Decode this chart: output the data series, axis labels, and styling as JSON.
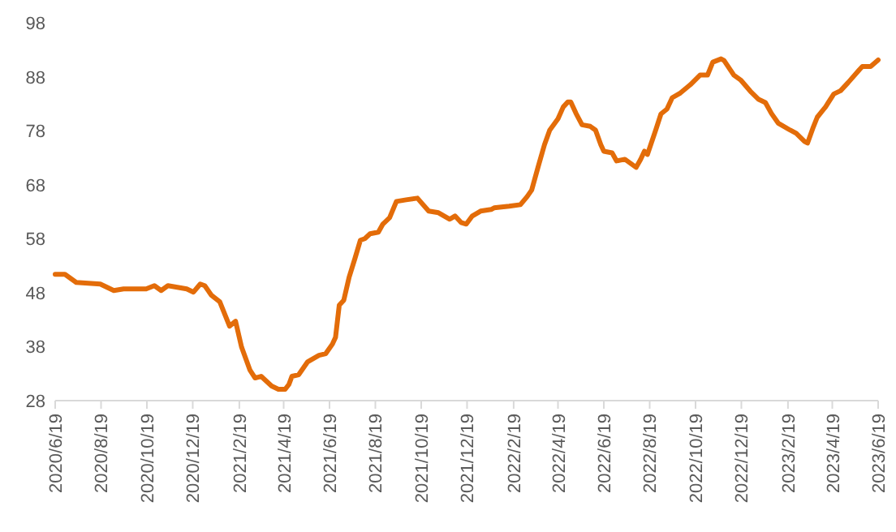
{
  "chart_data": {
    "type": "line",
    "x": [
      "2020-06-19",
      "2020-07-02",
      "2020-07-17",
      "2020-08-18",
      "2020-09-05",
      "2020-09-18",
      "2020-10-18",
      "2020-10-29",
      "2020-11-07",
      "2020-11-16",
      "2020-12-11",
      "2020-12-20",
      "2020-12-29",
      "2021-01-04",
      "2021-01-13",
      "2021-01-24",
      "2021-02-06",
      "2021-02-14",
      "2021-02-22",
      "2021-03-05",
      "2021-03-12",
      "2021-03-20",
      "2021-04-03",
      "2021-04-12",
      "2021-04-21",
      "2021-04-26",
      "2021-04-30",
      "2021-05-09",
      "2021-05-21",
      "2021-06-05",
      "2021-06-14",
      "2021-06-23",
      "2021-06-27",
      "2021-07-02",
      "2021-07-08",
      "2021-07-15",
      "2021-07-23",
      "2021-07-30",
      "2021-08-05",
      "2021-08-12",
      "2021-08-23",
      "2021-08-29",
      "2021-09-07",
      "2021-09-16",
      "2021-09-29",
      "2021-10-14",
      "2021-10-29",
      "2021-11-11",
      "2021-11-26",
      "2021-12-03",
      "2021-12-11",
      "2021-12-18",
      "2021-12-26",
      "2022-01-06",
      "2022-01-20",
      "2022-01-24",
      "2022-02-13",
      "2022-02-28",
      "2022-03-09",
      "2022-03-15",
      "2022-03-24",
      "2022-04-01",
      "2022-04-08",
      "2022-04-19",
      "2022-04-26",
      "2022-05-02",
      "2022-05-06",
      "2022-05-13",
      "2022-05-21",
      "2022-06-01",
      "2022-06-08",
      "2022-06-15",
      "2022-06-19",
      "2022-06-30",
      "2022-07-06",
      "2022-07-17",
      "2022-08-01",
      "2022-08-07",
      "2022-08-12",
      "2022-08-16",
      "2022-08-27",
      "2022-09-03",
      "2022-09-11",
      "2022-09-18",
      "2022-09-29",
      "2022-10-12",
      "2022-10-25",
      "2022-11-04",
      "2022-11-11",
      "2022-11-22",
      "2022-11-26",
      "2022-12-09",
      "2022-12-18",
      "2022-12-31",
      "2023-01-11",
      "2023-01-20",
      "2023-01-28",
      "2023-02-06",
      "2023-02-22",
      "2023-03-02",
      "2023-03-13",
      "2023-03-17",
      "2023-03-24",
      "2023-03-30",
      "2023-04-10",
      "2023-04-21",
      "2023-04-30",
      "2023-05-10",
      "2023-05-25",
      "2023-05-29",
      "2023-06-09",
      "2023-06-19"
    ],
    "series": [
      {
        "color": "#e36c09",
        "values": [
          51.4,
          51.4,
          49.9,
          49.6,
          48.4,
          48.7,
          48.7,
          49.3,
          48.4,
          49.3,
          48.7,
          48.1,
          49.6,
          49.3,
          47.5,
          46.3,
          41.8,
          42.7,
          37.9,
          33.7,
          32.2,
          32.5,
          30.7,
          30.1,
          30.1,
          31.0,
          32.5,
          32.8,
          35.2,
          36.4,
          36.7,
          38.5,
          39.7,
          45.7,
          46.6,
          50.8,
          54.4,
          57.7,
          58.0,
          58.9,
          59.2,
          60.7,
          61.9,
          64.9,
          65.2,
          65.5,
          63.1,
          62.8,
          61.6,
          62.2,
          61.0,
          60.7,
          62.2,
          63.1,
          63.4,
          63.7,
          64.0,
          64.3,
          65.8,
          67.0,
          71.5,
          75.4,
          78.1,
          80.2,
          82.4,
          83.3,
          83.3,
          81.2,
          79.1,
          78.8,
          78.1,
          75.4,
          74.2,
          73.9,
          72.4,
          72.7,
          71.2,
          72.7,
          74.2,
          73.6,
          78.1,
          81.1,
          82.0,
          84.1,
          85.0,
          86.5,
          88.3,
          88.3,
          90.7,
          91.3,
          91.0,
          88.3,
          87.4,
          85.3,
          83.8,
          83.2,
          81.2,
          79.4,
          78.1,
          77.5,
          76.0,
          75.7,
          78.4,
          80.5,
          82.4,
          84.8,
          85.4,
          86.9,
          89.3,
          89.9,
          89.9,
          91.1
        ]
      }
    ],
    "xlim": [
      "2020-06-19",
      "2023-06-19"
    ],
    "xticks": [
      {
        "value": "2020-06-19",
        "label": "2020/6/19"
      },
      {
        "value": "2020-08-19",
        "label": "2020/8/19"
      },
      {
        "value": "2020-10-19",
        "label": "2020/10/19"
      },
      {
        "value": "2020-12-19",
        "label": "2020/12/19"
      },
      {
        "value": "2021-02-19",
        "label": "2021/2/19"
      },
      {
        "value": "2021-04-19",
        "label": "2021/4/19"
      },
      {
        "value": "2021-06-19",
        "label": "2021/6/19"
      },
      {
        "value": "2021-08-19",
        "label": "2021/8/19"
      },
      {
        "value": "2021-10-19",
        "label": "2021/10/19"
      },
      {
        "value": "2021-12-19",
        "label": "2021/12/19"
      },
      {
        "value": "2022-02-19",
        "label": "2022/2/19"
      },
      {
        "value": "2022-04-19",
        "label": "2022/4/19"
      },
      {
        "value": "2022-06-19",
        "label": "2022/6/19"
      },
      {
        "value": "2022-08-19",
        "label": "2022/8/19"
      },
      {
        "value": "2022-10-19",
        "label": "2022/10/19"
      },
      {
        "value": "2022-12-19",
        "label": "2022/12/19"
      },
      {
        "value": "2023-02-19",
        "label": "2023/2/19"
      },
      {
        "value": "2023-04-19",
        "label": "2023/4/19"
      },
      {
        "value": "2023-06-19",
        "label": "2023/6/19"
      }
    ],
    "ylim": [
      28,
      98
    ],
    "yticks": [
      28,
      38,
      48,
      58,
      68,
      78,
      88,
      98
    ],
    "grid": false,
    "marker": "none",
    "line_style": "solid"
  }
}
